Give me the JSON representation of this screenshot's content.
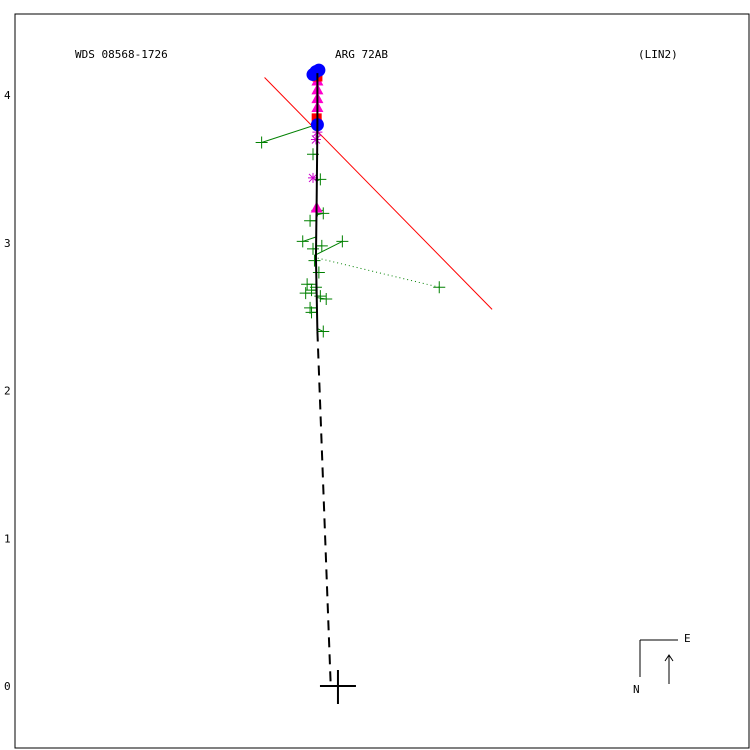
{
  "header": {
    "left": "WDS 08568-1726",
    "center": "ARG  72AB",
    "right": "(LIN2)"
  },
  "compass": {
    "east": "E",
    "north": "N"
  },
  "chart_data": {
    "type": "scatter",
    "y_ticks": [
      {
        "value": 0,
        "label": "0"
      },
      {
        "value": 1,
        "label": "1"
      },
      {
        "value": 2,
        "label": "2"
      },
      {
        "value": 3,
        "label": "3"
      },
      {
        "value": 4,
        "label": "4"
      }
    ],
    "xlim": [
      -2.2,
      2.8
    ],
    "ylim": [
      -0.42,
      4.55
    ],
    "primary": {
      "x": 0.0,
      "y": 0.0
    },
    "line_of_nodes": {
      "x1": -0.5,
      "y1": 4.12,
      "x2": 1.05,
      "y2": 2.55,
      "color": "#ff0000"
    },
    "orbit_trace": {
      "solid": [
        [
          -0.14,
          4.15
        ],
        [
          -0.14,
          3.8
        ],
        [
          -0.145,
          3.3
        ],
        [
          -0.15,
          2.9
        ],
        [
          -0.145,
          2.65
        ],
        [
          -0.14,
          2.4
        ]
      ],
      "dashed": [
        [
          -0.14,
          2.4
        ],
        [
          -0.05,
          0.02
        ]
      ]
    },
    "measurements": {
      "micrometer": {
        "color": "#008000",
        "points": [
          [
            -0.52,
            3.68,
            -0.15,
            3.8
          ],
          [
            -0.17,
            3.6,
            -0.15,
            3.6
          ],
          [
            -0.12,
            3.43,
            -0.145,
            3.42
          ],
          [
            -0.14,
            3.22,
            -0.145,
            3.21
          ],
          [
            -0.1,
            3.2,
            -0.145,
            3.19
          ],
          [
            -0.19,
            3.15,
            -0.145,
            3.15
          ],
          [
            -0.24,
            3.01,
            -0.15,
            3.04
          ],
          [
            -0.17,
            2.96,
            -0.15,
            2.96
          ],
          [
            -0.11,
            2.98,
            -0.15,
            2.98
          ],
          [
            0.03,
            3.01,
            -0.15,
            2.92
          ],
          [
            -0.16,
            2.88,
            -0.15,
            2.88
          ],
          [
            -0.13,
            2.8,
            -0.15,
            2.8
          ],
          [
            -0.21,
            2.72,
            -0.15,
            2.72
          ],
          [
            -0.18,
            2.68,
            -0.15,
            2.68
          ],
          [
            -0.22,
            2.66,
            -0.15,
            2.66
          ],
          [
            -0.15,
            2.7,
            -0.15,
            2.7
          ],
          [
            -0.08,
            2.62,
            -0.145,
            2.63
          ],
          [
            -0.12,
            2.64,
            -0.145,
            2.64
          ],
          [
            -0.19,
            2.56,
            -0.145,
            2.56
          ],
          [
            -0.18,
            2.53,
            -0.145,
            2.53
          ],
          [
            -0.1,
            2.4,
            -0.14,
            2.42
          ],
          [
            0.69,
            2.7,
            -0.15,
            2.9
          ]
        ]
      },
      "photographic": {
        "color": "#cc00cc",
        "points": [
          [
            -0.15,
            3.7
          ],
          [
            -0.17,
            3.44
          ],
          [
            -0.14,
            3.75
          ]
        ]
      },
      "speckle": {
        "color": "#ff00cc",
        "points": [
          [
            -0.14,
            4.1
          ],
          [
            -0.14,
            4.04
          ],
          [
            -0.14,
            3.98
          ],
          [
            -0.14,
            3.92
          ],
          [
            -0.14,
            3.85
          ],
          [
            -0.145,
            3.24
          ]
        ]
      },
      "interferometric": {
        "color": "#ff0000",
        "points": [
          [
            -0.14,
            4.12
          ],
          [
            -0.145,
            3.85
          ]
        ]
      },
      "hipparcos": {
        "color": "#0000ff",
        "points": [
          [
            -0.15,
            4.16
          ],
          [
            -0.13,
            4.17
          ],
          [
            -0.17,
            4.14
          ],
          [
            -0.14,
            3.8
          ]
        ]
      }
    }
  }
}
